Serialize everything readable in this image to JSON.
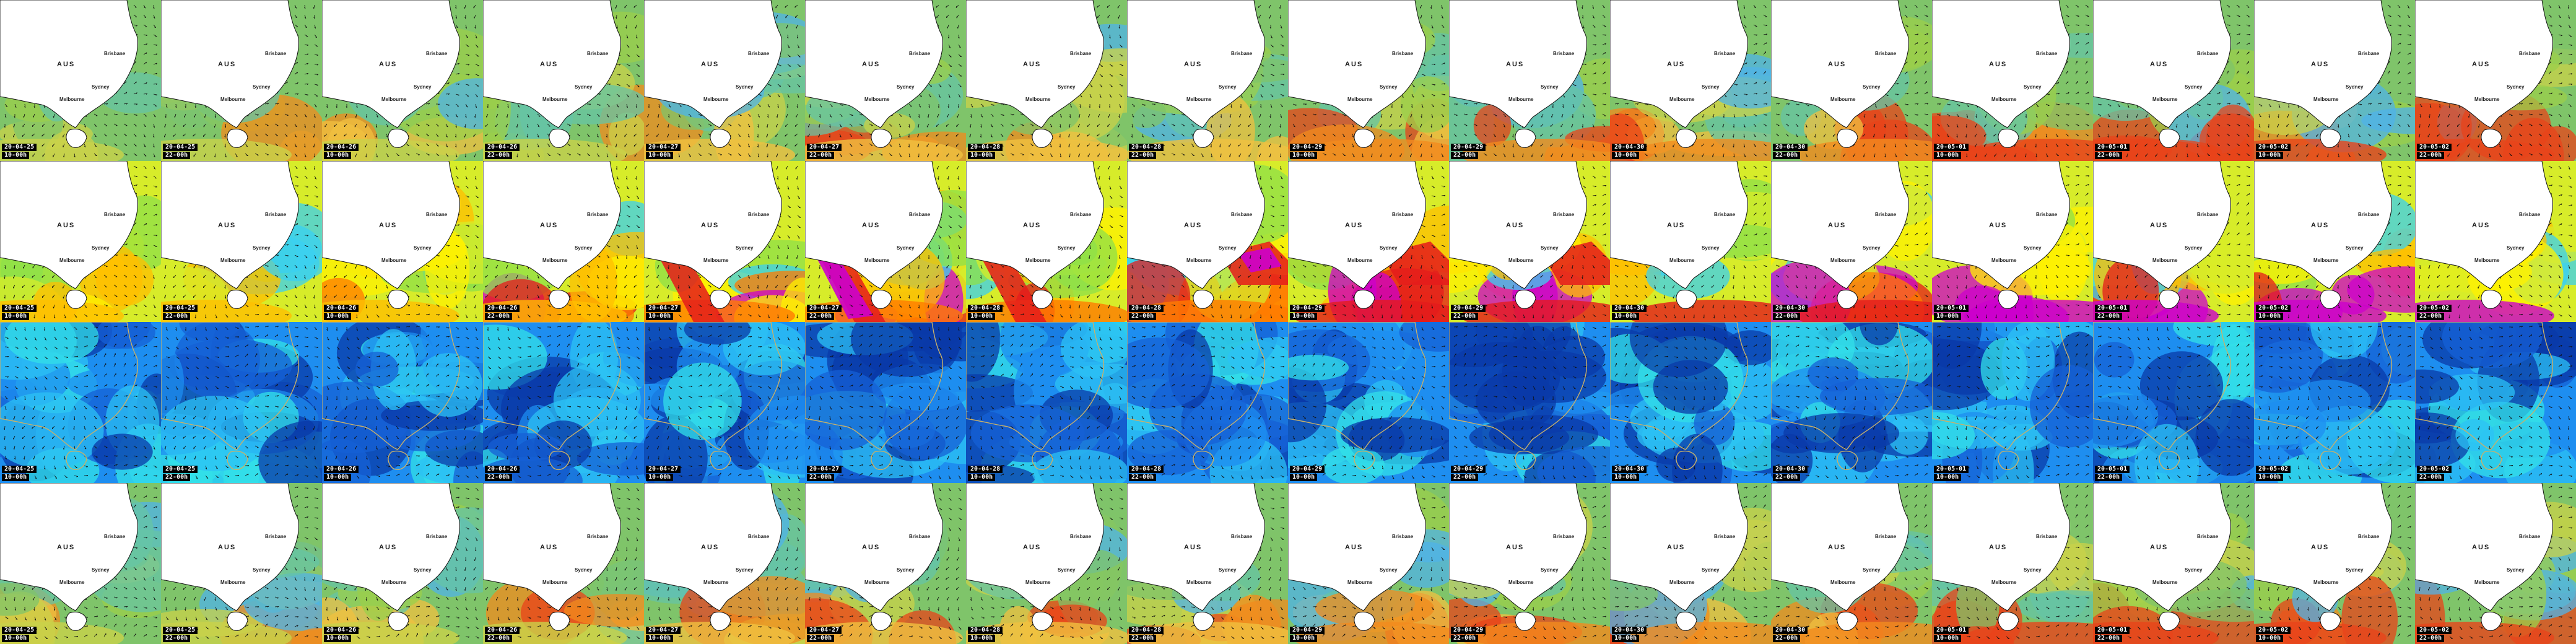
{
  "map": {
    "region_label": "AUS",
    "cities": {
      "brisbane": "Brisbane",
      "sydney": "Sydney",
      "melbourne": "Melbourne"
    }
  },
  "timesteps": [
    {
      "date": "20-04-25",
      "time": "10-00h"
    },
    {
      "date": "20-04-25",
      "time": "22-00h"
    },
    {
      "date": "20-04-26",
      "time": "10-00h"
    },
    {
      "date": "20-04-26",
      "time": "22-00h"
    },
    {
      "date": "20-04-27",
      "time": "10-00h"
    },
    {
      "date": "20-04-27",
      "time": "22-00h"
    },
    {
      "date": "20-04-28",
      "time": "10-00h"
    },
    {
      "date": "20-04-28",
      "time": "22-00h"
    },
    {
      "date": "20-04-29",
      "time": "10-00h"
    },
    {
      "date": "20-04-29",
      "time": "22-00h"
    },
    {
      "date": "20-04-30",
      "time": "10-00h"
    },
    {
      "date": "20-04-30",
      "time": "22-00h"
    },
    {
      "date": "20-05-01",
      "time": "10-00h"
    },
    {
      "date": "20-05-01",
      "time": "22-00h"
    },
    {
      "date": "20-05-02",
      "time": "10-00h"
    },
    {
      "date": "20-05-02",
      "time": "22-00h"
    }
  ],
  "rows": [
    {
      "id": "wave-height",
      "style": "land-map",
      "palette": [
        "#4fb3e8",
        "#66c4a6",
        "#7fc46a",
        "#9bcf4b",
        "#c9d24a",
        "#f0c040",
        "#f28b1e",
        "#e8431a"
      ]
    },
    {
      "id": "wave-period",
      "style": "land-map",
      "palette": [
        "#39d0f2",
        "#8ee04a",
        "#d7ec2a",
        "#fff200",
        "#ffbf00",
        "#ff7a00",
        "#e41b1b",
        "#cc00cc"
      ]
    },
    {
      "id": "wind-speed",
      "style": "full-field",
      "palette": [
        "#0a3aa8",
        "#1660d6",
        "#1e8ef0",
        "#2cc1f4",
        "#33e0e8",
        "#8ee04a",
        "#f6ee22",
        "#e2301c"
      ]
    },
    {
      "id": "swell-height",
      "style": "land-map",
      "palette": [
        "#4fb3e8",
        "#66c4a6",
        "#7fc46a",
        "#9bcf4b",
        "#c9d24a",
        "#f0c040",
        "#f28b1e",
        "#e8431a"
      ]
    }
  ],
  "colors": {
    "land": "#ffffff",
    "coast": "#111111",
    "arrow": "#111111",
    "stamp_bg": "#000000",
    "stamp_fg": "#ffffff"
  }
}
